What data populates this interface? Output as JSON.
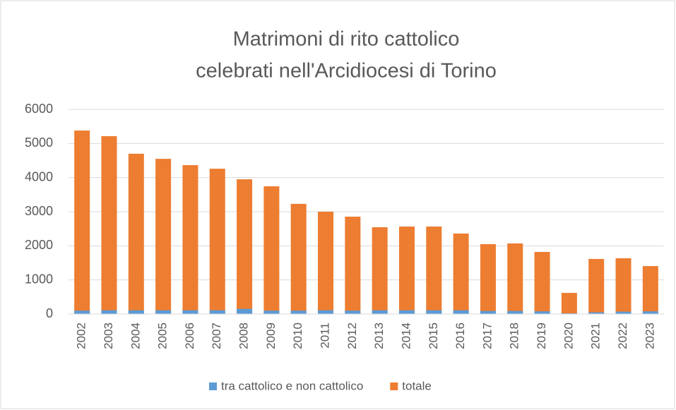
{
  "chart_data": {
    "type": "bar",
    "stacked": false,
    "title": [
      "Matrimoni di rito cattolico",
      "celebrati nell'Arcidiocesi di Torino"
    ],
    "categories": [
      "2002",
      "2003",
      "2004",
      "2005",
      "2006",
      "2007",
      "2008",
      "2009",
      "2010",
      "2011",
      "2012",
      "2013",
      "2014",
      "2015",
      "2016",
      "2017",
      "2018",
      "2019",
      "2020",
      "2021",
      "2022",
      "2023"
    ],
    "series": [
      {
        "name": "tra cattolico e non cattolico",
        "color": "#5b9bd5",
        "values": [
          100,
          110,
          110,
          110,
          110,
          110,
          150,
          100,
          100,
          110,
          100,
          110,
          110,
          110,
          110,
          90,
          90,
          80,
          20,
          50,
          70,
          80
        ]
      },
      {
        "name": "totale",
        "color": "#ed7d31",
        "values": [
          5380,
          5215,
          4700,
          4550,
          4365,
          4260,
          3950,
          3745,
          3230,
          3000,
          2855,
          2545,
          2565,
          2565,
          2360,
          2050,
          2070,
          1820,
          620,
          1615,
          1635,
          1405
        ]
      }
    ],
    "ylim": [
      0,
      6000
    ],
    "yticks": [
      0,
      1000,
      2000,
      3000,
      4000,
      5000,
      6000
    ],
    "grid": true,
    "legend": "bottom"
  }
}
